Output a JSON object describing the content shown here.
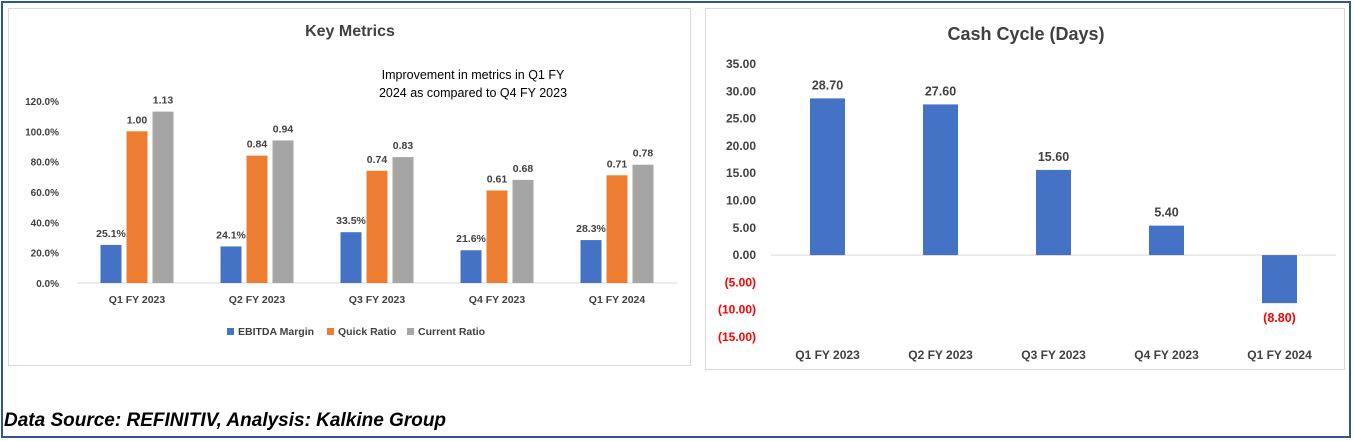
{
  "chart_data": [
    {
      "type": "bar",
      "title": "Key Metrics",
      "annotation": "Improvement in metrics in Q1 FY 2024 as compared to Q4 FY 2023",
      "annotation_lines": [
        "Improvement in metrics in Q1 FY",
        "2024 as compared to Q4 FY 2023"
      ],
      "categories": [
        "Q1 FY 2023",
        "Q2 FY 2023",
        "Q3 FY 2023",
        "Q4 FY 2023",
        "Q1 FY 2024"
      ],
      "ylim": [
        0,
        1.2
      ],
      "yticks": [
        0,
        0.2,
        0.4,
        0.6,
        0.8,
        1.0,
        1.2
      ],
      "ytick_labels": [
        "0.0%",
        "20.0%",
        "40.0%",
        "60.0%",
        "80.0%",
        "100.0%",
        "120.0%"
      ],
      "legend_position": "bottom",
      "series": [
        {
          "name": "EBITDA Margin",
          "color": "#4472c4",
          "values": [
            0.251,
            0.241,
            0.335,
            0.216,
            0.283
          ],
          "labels": [
            "25.1%",
            "24.1%",
            "33.5%",
            "21.6%",
            "28.3%"
          ]
        },
        {
          "name": "Quick Ratio",
          "color": "#ed7d31",
          "values": [
            1.0,
            0.84,
            0.74,
            0.61,
            0.71
          ],
          "labels": [
            "1.00",
            "0.84",
            "0.74",
            "0.61",
            "0.71"
          ]
        },
        {
          "name": "Current Ratio",
          "color": "#a5a5a5",
          "values": [
            1.13,
            0.94,
            0.83,
            0.68,
            0.78
          ],
          "labels": [
            "1.13",
            "0.94",
            "0.83",
            "0.68",
            "0.78"
          ]
        }
      ]
    },
    {
      "type": "bar",
      "title": "Cash Cycle (Days)",
      "categories": [
        "Q1 FY 2023",
        "Q2 FY 2023",
        "Q3 FY 2023",
        "Q4 FY 2023",
        "Q1 FY 2024"
      ],
      "ylim": [
        -15,
        35
      ],
      "yticks": [
        35,
        30,
        25,
        20,
        15,
        10,
        5,
        0,
        -5,
        -10,
        -15
      ],
      "ytick_labels": [
        "35.00",
        "30.00",
        "25.00",
        "20.00",
        "15.00",
        "10.00",
        "5.00",
        "0.00",
        "(5.00)",
        "(10.00)",
        "(15.00)"
      ],
      "bar_color": "#4472c4",
      "negative_label_color": "#ff0000",
      "values": [
        28.7,
        27.6,
        15.6,
        5.4,
        -8.8
      ],
      "labels": [
        "28.70",
        "27.60",
        "15.60",
        "5.40",
        "(8.80)"
      ]
    }
  ],
  "footer": {
    "source": "Data Source: REFINITIV, Analysis: Kalkine Group"
  }
}
